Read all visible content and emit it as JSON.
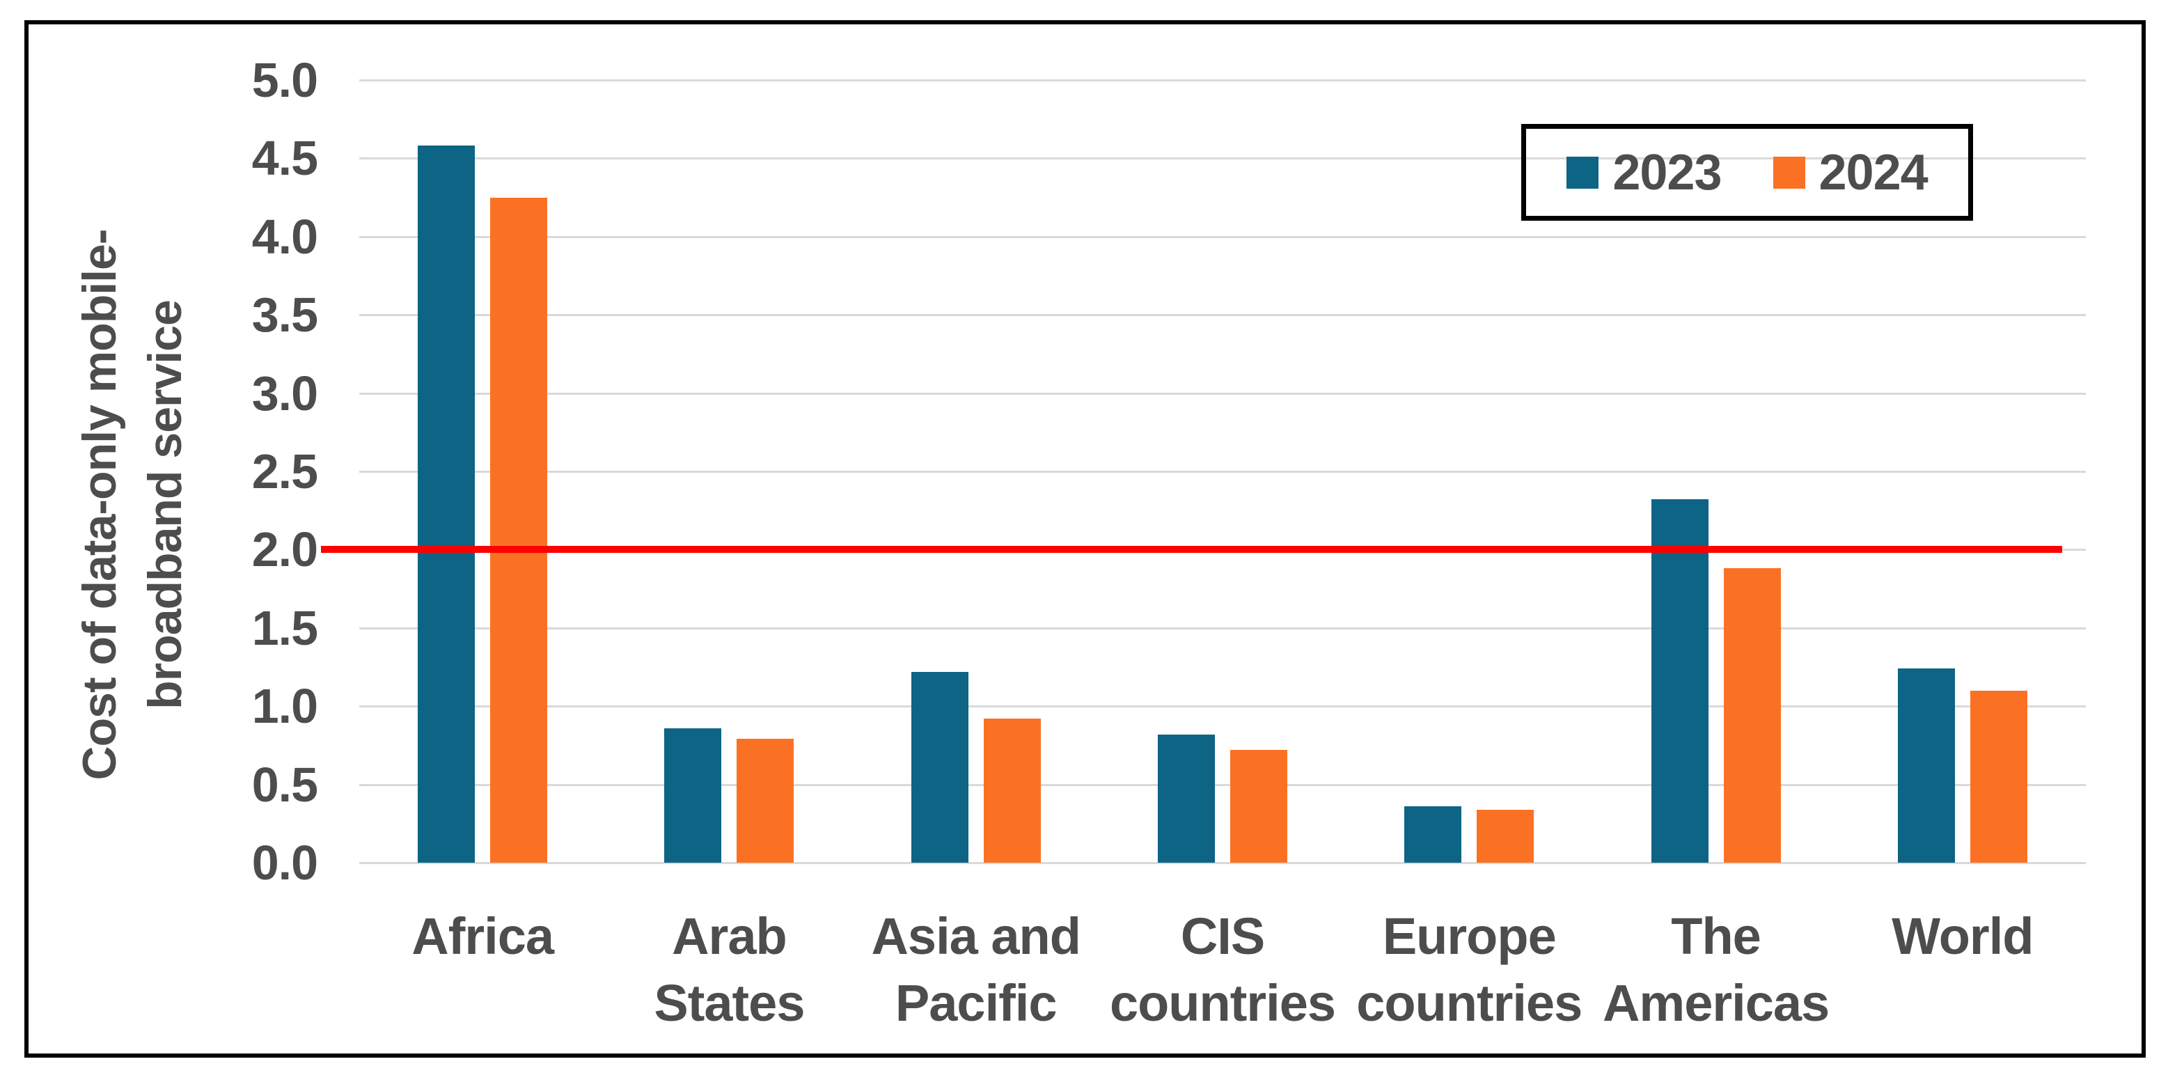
{
  "chart": {
    "y_axis_title_lines": [
      "Cost of data-only mobile-",
      "broadband service"
    ],
    "colors": {
      "series_2023": "#0d6484",
      "series_2024": "#fb7124",
      "reference_line": "#ff0000",
      "gridline": "#d9d9d9",
      "text": "#4d4d4d",
      "frame_border": "#000000"
    }
  },
  "chart_data": {
    "type": "bar",
    "title": "",
    "ylabel": "Cost of data-only mobile-broadband service",
    "xlabel": "",
    "ylim": [
      0,
      5
    ],
    "ytick_step": 0.5,
    "ytick_labels": [
      "5.0",
      "4.5",
      "4.0",
      "3.5",
      "3.0",
      "2.5",
      "2.0",
      "1.5",
      "1.0",
      "0.5",
      "0.0"
    ],
    "grid": true,
    "legend_position": "top-right",
    "categories": [
      "Africa",
      "Arab States",
      "Asia and Pacific",
      "CIS countries",
      "Europe countries",
      "The Americas",
      "World"
    ],
    "category_label_lines": [
      [
        "Africa"
      ],
      [
        "Arab",
        "States"
      ],
      [
        "Asia and",
        "Pacific"
      ],
      [
        "CIS",
        "countries"
      ],
      [
        "Europe",
        "countries"
      ],
      [
        "The",
        "Americas"
      ],
      [
        "World"
      ]
    ],
    "series": [
      {
        "name": "2023",
        "color": "#0d6484",
        "values": [
          4.58,
          0.86,
          1.22,
          0.82,
          0.36,
          2.32,
          1.24
        ]
      },
      {
        "name": "2024",
        "color": "#fb7124",
        "values": [
          4.25,
          0.79,
          0.92,
          0.72,
          0.34,
          1.88,
          1.1
        ]
      }
    ],
    "reference_line": {
      "value": 2.0,
      "color": "#ff0000"
    }
  }
}
